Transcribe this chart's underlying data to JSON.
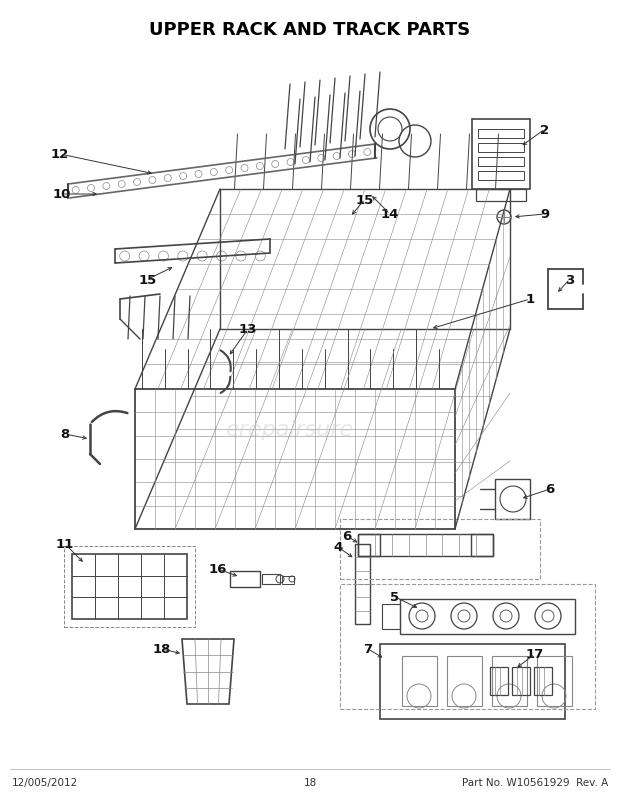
{
  "title": "UPPER RACK AND TRACK PARTS",
  "title_fontsize": 13,
  "title_fontweight": "bold",
  "footer_left": "12/005/2012",
  "footer_center": "18",
  "footer_right": "Part No. W10561929  Rev. A",
  "footer_fontsize": 7.5,
  "bg_color": "#ffffff",
  "dc": "#444444",
  "lc": "#888888",
  "watermark": "erepairsure",
  "wm_color": "#cccccc",
  "wm_alpha": 0.45,
  "wm_fontsize": 16
}
